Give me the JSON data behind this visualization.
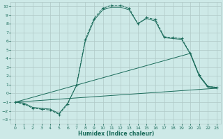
{
  "xlabel": "Humidex (Indice chaleur)",
  "background_color": "#cde9e7",
  "grid_color": "#b0c8c6",
  "line_color": "#1a6b5a",
  "xlim": [
    -0.5,
    23.5
  ],
  "ylim": [
    -3.5,
    10.5
  ],
  "xticks": [
    0,
    1,
    2,
    3,
    4,
    5,
    6,
    7,
    8,
    9,
    10,
    11,
    12,
    13,
    14,
    15,
    16,
    17,
    18,
    19,
    20,
    21,
    22,
    23
  ],
  "yticks": [
    -3,
    -2,
    -1,
    0,
    1,
    2,
    3,
    4,
    5,
    6,
    7,
    8,
    9,
    10
  ],
  "curve1_x": [
    0,
    1,
    2,
    3,
    4,
    5,
    6,
    7,
    8,
    9,
    10,
    11,
    12,
    13,
    14,
    15,
    16,
    17,
    18,
    19,
    20,
    21,
    22,
    23
  ],
  "curve1_y": [
    -1,
    -1.2,
    -1.7,
    -1.8,
    -1.9,
    -2.4,
    -1.2,
    1.0,
    6.2,
    8.6,
    9.8,
    10.1,
    10.1,
    9.8,
    8.0,
    8.7,
    8.5,
    6.5,
    6.4,
    6.3,
    4.6,
    2.1,
    0.8,
    0.7
  ],
  "curve2_x": [
    0,
    1,
    2,
    3,
    4,
    5,
    6,
    7,
    8,
    9,
    10,
    11,
    12,
    13,
    14,
    15,
    16,
    17,
    18,
    19,
    20,
    21,
    22,
    23
  ],
  "curve2_y": [
    -1,
    -1.1,
    -1.6,
    -1.7,
    -1.8,
    -2.3,
    -1.1,
    0.9,
    6.0,
    8.4,
    9.6,
    9.9,
    9.9,
    9.6,
    8.0,
    8.6,
    8.3,
    6.4,
    6.3,
    6.2,
    4.5,
    2.0,
    0.7,
    0.6
  ],
  "line3_x": [
    0,
    23
  ],
  "line3_y": [
    -1.0,
    0.6
  ],
  "line4_x": [
    0,
    20,
    21,
    22,
    23
  ],
  "line4_y": [
    -1.0,
    4.6,
    2.1,
    0.8,
    0.7
  ]
}
